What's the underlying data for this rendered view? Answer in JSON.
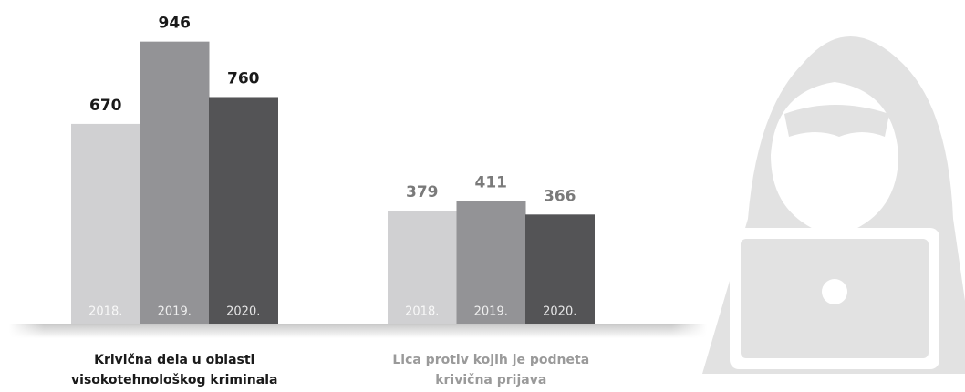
{
  "chart_data": [
    {
      "type": "bar",
      "title": [
        "Krivična dela u oblasti",
        "visokotehnološkog kriminala"
      ],
      "categories": [
        "2018.",
        "2019.",
        "2020."
      ],
      "values": [
        670,
        946,
        760
      ],
      "colors": [
        "#d0d0d2",
        "#939396",
        "#545456"
      ],
      "label_color": "#1a1a1a",
      "title_color": "#1a1a1a",
      "ylim": [
        0,
        1000
      ]
    },
    {
      "type": "bar",
      "title": [
        "Lica protiv kojih je podneta",
        "krivična prijava"
      ],
      "categories": [
        "2018.",
        "2019.",
        "2020."
      ],
      "values": [
        379,
        411,
        366
      ],
      "colors": [
        "#d0d0d2",
        "#939396",
        "#545456"
      ],
      "label_color": "#7a7a7a",
      "title_color": "#9a9a9a",
      "ylim": [
        0,
        1000
      ]
    }
  ]
}
